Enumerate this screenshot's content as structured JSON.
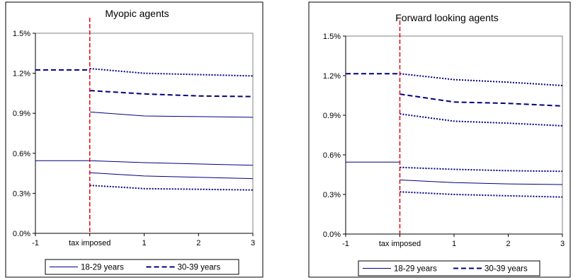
{
  "chart_data": [
    {
      "type": "line",
      "title": "Myopic agents",
      "x_tick_labels": [
        "-1",
        "tax imposed",
        "1",
        "2",
        "3"
      ],
      "y_tick_labels": [
        "0.0%",
        "0.3%",
        "0.6%",
        "0.9%",
        "1.2%",
        "1.5%"
      ],
      "xlim": [
        -1,
        3
      ],
      "ylim": [
        0,
        1.5
      ],
      "annotations": {
        "vertical_line_x": 0,
        "vertical_line_color": "#e8000b"
      },
      "legend": [
        {
          "label": "18-29 years",
          "style": "solid"
        },
        {
          "label": "30-39 years",
          "style": "dashed"
        }
      ],
      "lines": [
        {
          "group": "18-29 years",
          "style": "solid",
          "points": [
            [
              -1,
              0.545
            ],
            [
              0,
              0.545
            ]
          ]
        },
        {
          "group": "18-29 years",
          "style": "solid",
          "points": [
            [
              0,
              0.545
            ],
            [
              1,
              0.53
            ],
            [
              2,
              0.52
            ],
            [
              3,
              0.51
            ]
          ]
        },
        {
          "group": "18-29 years",
          "style": "solid",
          "points": [
            [
              0,
              0.455
            ],
            [
              1,
              0.43
            ],
            [
              2,
              0.42
            ],
            [
              3,
              0.41
            ]
          ]
        },
        {
          "group": "18-29 years",
          "style": "solid",
          "points": [
            [
              0,
              0.91
            ],
            [
              1,
              0.88
            ],
            [
              2,
              0.875
            ],
            [
              3,
              0.87
            ]
          ]
        },
        {
          "group": "18-29 years",
          "style": "dotted",
          "points": [
            [
              0,
              0.36
            ],
            [
              1,
              0.335
            ],
            [
              2,
              0.33
            ],
            [
              3,
              0.325
            ]
          ]
        },
        {
          "group": "30-39 years",
          "style": "dashed",
          "points": [
            [
              -1,
              1.225
            ],
            [
              0,
              1.225
            ]
          ]
        },
        {
          "group": "30-39 years",
          "style": "dashed",
          "points": [
            [
              0,
              1.07
            ],
            [
              1,
              1.045
            ],
            [
              2,
              1.03
            ],
            [
              3,
              1.025
            ]
          ]
        },
        {
          "group": "30-39 years",
          "style": "dotted",
          "points": [
            [
              0,
              1.235
            ],
            [
              1,
              1.2
            ],
            [
              2,
              1.19
            ],
            [
              3,
              1.18
            ]
          ]
        }
      ]
    },
    {
      "type": "line",
      "title": "Forward looking agents",
      "x_tick_labels": [
        "-1",
        "tax imposed",
        "1",
        "2",
        "3"
      ],
      "y_tick_labels": [
        "0.0%",
        "0.3%",
        "0.6%",
        "0.9%",
        "1.2%",
        "1.5%"
      ],
      "xlim": [
        -1,
        3
      ],
      "ylim": [
        0,
        1.5
      ],
      "annotations": {
        "vertical_line_x": 0,
        "vertical_line_color": "#e8000b"
      },
      "legend": [
        {
          "label": "18-29 years",
          "style": "solid"
        },
        {
          "label": "30-39 years",
          "style": "dashed"
        }
      ],
      "lines": [
        {
          "group": "18-29 years",
          "style": "solid",
          "points": [
            [
              -1,
              0.545
            ],
            [
              0,
              0.545
            ]
          ]
        },
        {
          "group": "18-29 years",
          "style": "solid",
          "points": [
            [
              0,
              0.41
            ],
            [
              1,
              0.39
            ],
            [
              2,
              0.38
            ],
            [
              3,
              0.375
            ]
          ]
        },
        {
          "group": "18-29 years",
          "style": "dotted",
          "points": [
            [
              0,
              0.505
            ],
            [
              1,
              0.49
            ],
            [
              2,
              0.48
            ],
            [
              3,
              0.475
            ]
          ]
        },
        {
          "group": "18-29 years",
          "style": "dotted",
          "points": [
            [
              0,
              0.32
            ],
            [
              1,
              0.3
            ],
            [
              2,
              0.29
            ],
            [
              3,
              0.28
            ]
          ]
        },
        {
          "group": "30-39 years",
          "style": "dashed",
          "points": [
            [
              -1,
              1.215
            ],
            [
              0,
              1.215
            ]
          ]
        },
        {
          "group": "30-39 years",
          "style": "dashed",
          "points": [
            [
              0,
              1.06
            ],
            [
              1,
              1.0
            ],
            [
              2,
              0.99
            ],
            [
              3,
              0.97
            ]
          ]
        },
        {
          "group": "30-39 years",
          "style": "dotted",
          "points": [
            [
              0,
              1.215
            ],
            [
              1,
              1.17
            ],
            [
              2,
              1.15
            ],
            [
              3,
              1.125
            ]
          ]
        },
        {
          "group": "30-39 years",
          "style": "dotted",
          "points": [
            [
              0,
              0.91
            ],
            [
              1,
              0.855
            ],
            [
              2,
              0.84
            ],
            [
              3,
              0.82
            ]
          ]
        }
      ]
    }
  ],
  "colors": {
    "line": "#00007f",
    "vline": "#e8000b",
    "axis": "#808080",
    "frame": "#000000"
  }
}
